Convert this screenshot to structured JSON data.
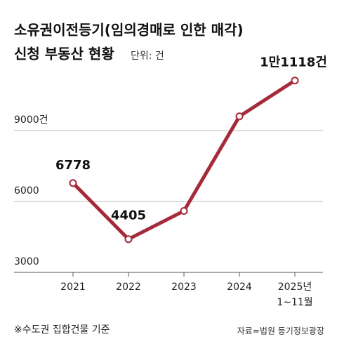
{
  "chart_data": {
    "type": "line",
    "title": "소유권이전등기(임의경매로 인한 매각)",
    "title_line2": "신청 부동산 현황",
    "unit": "단위: 건",
    "categories": [
      "2021",
      "2022",
      "2023",
      "2024",
      "2025년\n1~11월"
    ],
    "series": [
      {
        "name": "신청 부동산",
        "color": "#a52a3a",
        "values": [
          6778,
          4405,
          5600,
          9600,
          11118
        ],
        "value_labels": [
          "6778",
          "4405",
          null,
          null,
          "1만1118건"
        ]
      }
    ],
    "ylim": [
      3000,
      12000
    ],
    "yticks": [
      3000,
      6000,
      {
        "value": 9000,
        "label": "9000건"
      }
    ],
    "grid": true,
    "note": "※수도권 집합건물 기준",
    "source": "자료=법원 등기정보광장"
  }
}
